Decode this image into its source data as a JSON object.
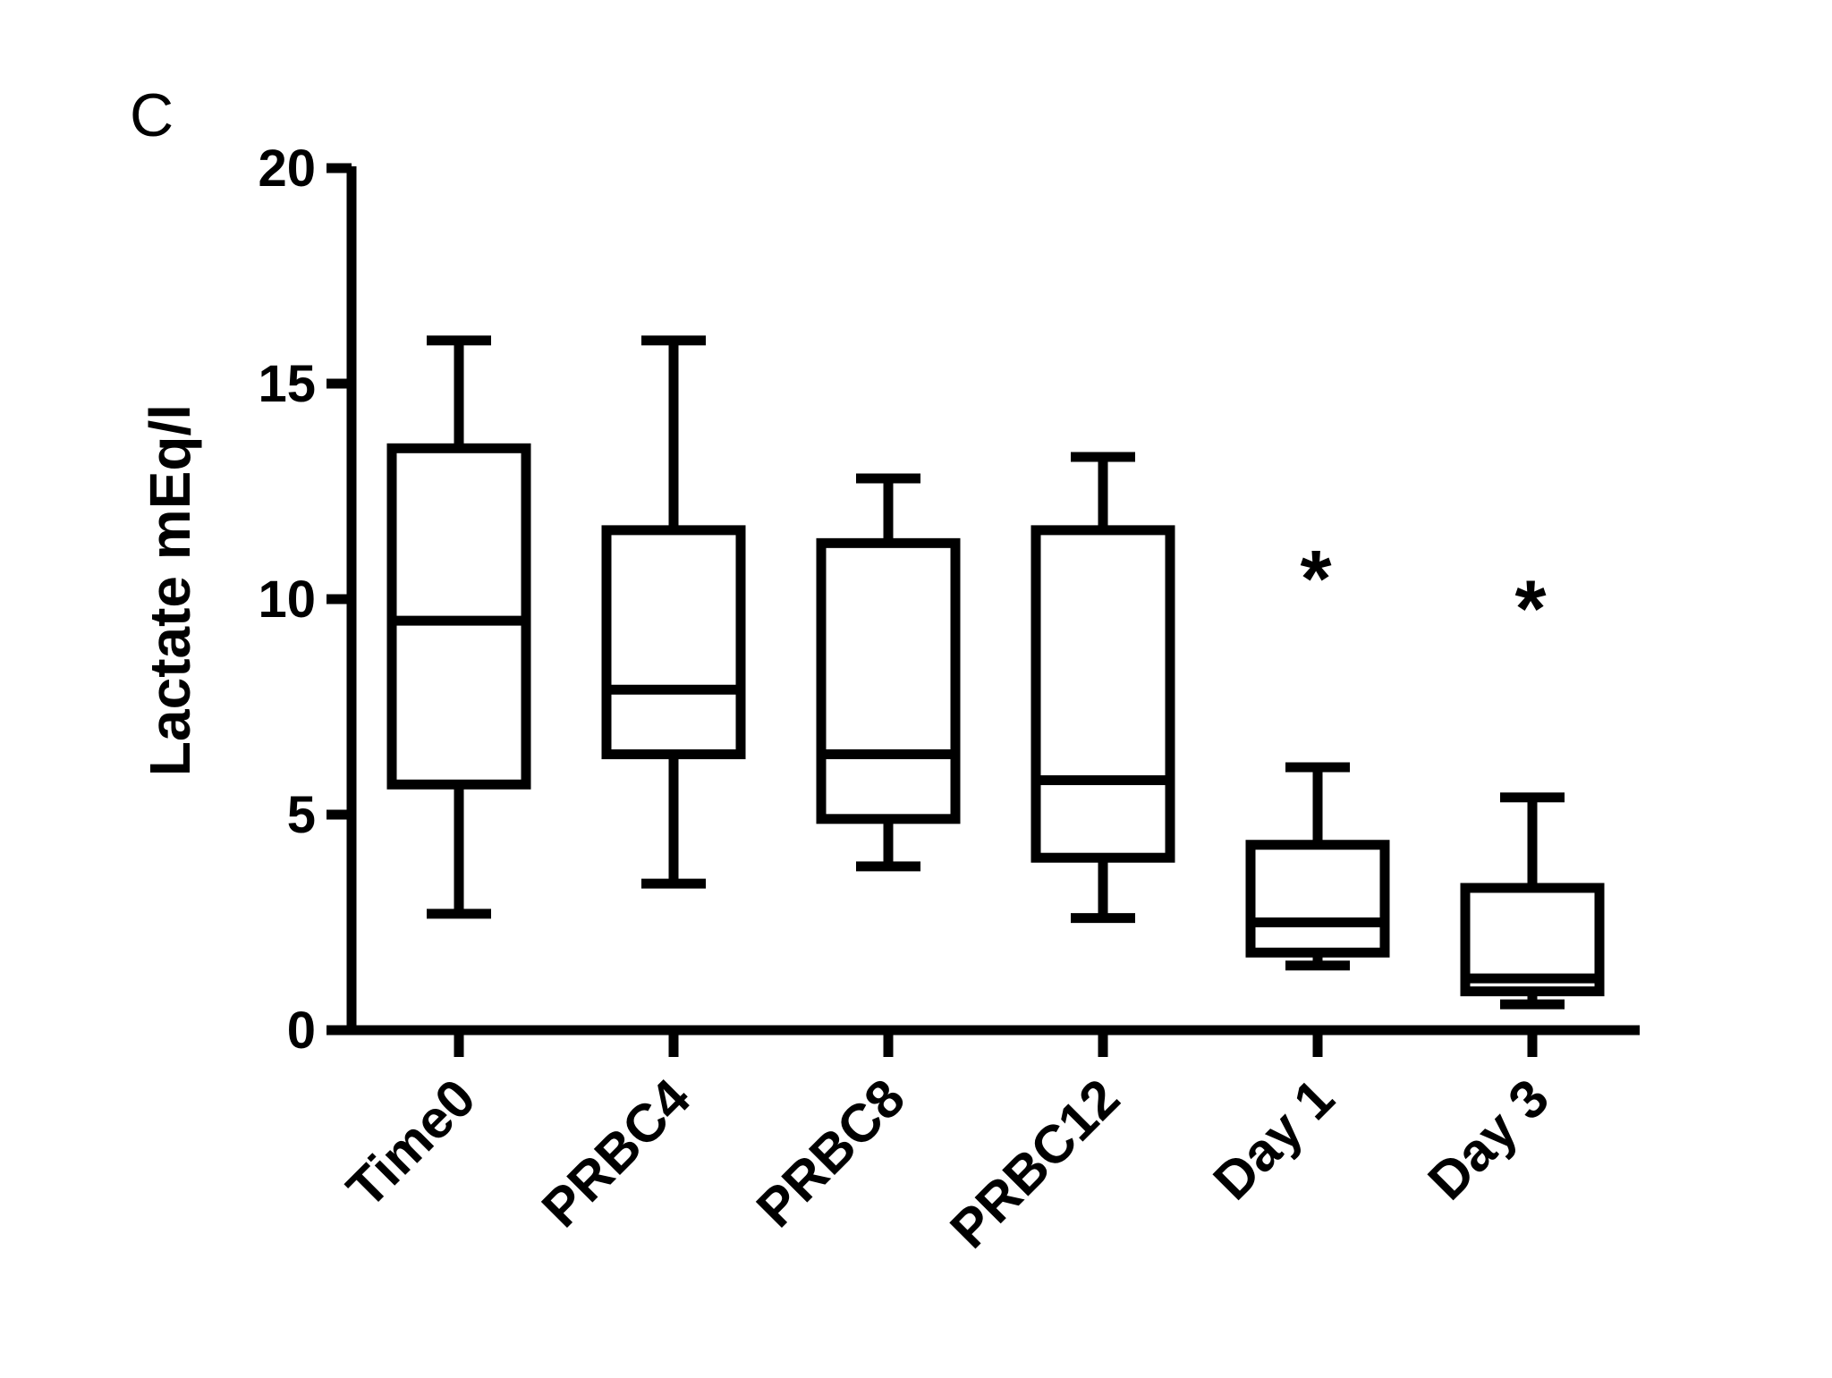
{
  "panel_label": "C",
  "chart_data": {
    "type": "box",
    "title": "",
    "xlabel": "",
    "ylabel": "Lactate mEq/l",
    "ylim": [
      0,
      20
    ],
    "yticks": [
      0,
      5,
      10,
      15,
      20
    ],
    "ytick_labels": [
      "0",
      "5",
      "10",
      "15",
      "20"
    ],
    "grid": false,
    "legend": "none",
    "categories": [
      "Time0",
      "PRBC4",
      "PRBC8",
      "PRBC12",
      "Day 1",
      "Day 3"
    ],
    "boxes": [
      {
        "category": "Time0",
        "min": 2.7,
        "q1": 5.7,
        "median": 9.5,
        "q3": 13.5,
        "max": 16.0,
        "annotation": ""
      },
      {
        "category": "PRBC4",
        "min": 3.4,
        "q1": 6.4,
        "median": 7.9,
        "q3": 11.6,
        "max": 16.0,
        "annotation": ""
      },
      {
        "category": "PRBC8",
        "min": 3.8,
        "q1": 4.9,
        "median": 6.4,
        "q3": 11.3,
        "max": 12.8,
        "annotation": ""
      },
      {
        "category": "PRBC12",
        "min": 2.6,
        "q1": 4.0,
        "median": 5.8,
        "q3": 11.6,
        "max": 13.3,
        "annotation": ""
      },
      {
        "category": "Day 1",
        "min": 1.5,
        "q1": 1.8,
        "median": 2.5,
        "q3": 4.3,
        "max": 6.1,
        "annotation": "*"
      },
      {
        "category": "Day 3",
        "min": 0.6,
        "q1": 0.9,
        "median": 1.2,
        "q3": 3.3,
        "max": 5.4,
        "annotation": "*"
      }
    ],
    "colors": {
      "stroke": "#000000",
      "fill": "#ffffff",
      "text": "#000000"
    }
  }
}
